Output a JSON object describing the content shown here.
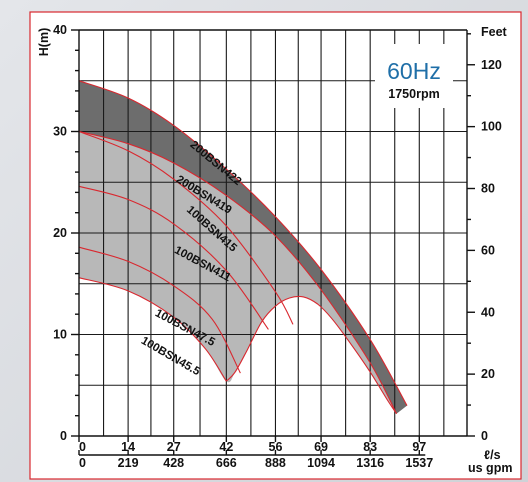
{
  "chart_data": {
    "type": "line",
    "title": "60Hz",
    "subtitle": "1750rpm",
    "ylabel": "H(m)",
    "ylabel_right": "Feet",
    "xlabel_top_unit": "ℓ/s",
    "xlabel_bottom_unit": "us gpm",
    "xlim": [
      0,
      110.6
    ],
    "ylim": [
      0,
      40
    ],
    "x_ticks": [
      0,
      14,
      27,
      42,
      56,
      69,
      83,
      97
    ],
    "x_ticks_gpm": [
      "0",
      "219",
      "428",
      "666",
      "888",
      "1094",
      "1316",
      "1537"
    ],
    "y_ticks": [
      0,
      10,
      20,
      30,
      40
    ],
    "y_ticks_feet": [
      "0",
      "20",
      "40",
      "60",
      "80",
      "100",
      "120"
    ],
    "grid": true,
    "series": [
      {
        "name": "200BSN422",
        "points": [
          [
            0,
            35
          ],
          [
            14,
            33.3
          ],
          [
            27,
            30.6
          ],
          [
            42,
            26.3
          ],
          [
            56,
            21.6
          ],
          [
            69,
            16.4
          ],
          [
            83,
            9.5
          ],
          [
            93.5,
            3.0
          ]
        ]
      },
      {
        "name": "200BSN419",
        "points": [
          [
            0,
            30
          ],
          [
            14,
            28.8
          ],
          [
            27,
            26.9
          ],
          [
            42,
            23.7
          ],
          [
            56,
            19.7
          ],
          [
            69,
            14.4
          ],
          [
            83,
            7.2
          ],
          [
            90.5,
            2.2
          ]
        ]
      },
      {
        "name": "100BSN415",
        "points": [
          [
            0,
            30
          ],
          [
            14,
            28.1
          ],
          [
            27,
            25.3
          ],
          [
            42,
            20.7
          ],
          [
            56,
            14.2
          ],
          [
            61,
            11.0
          ]
        ]
      },
      {
        "name": "100BSN411",
        "points": [
          [
            0,
            24.6
          ],
          [
            14,
            23.3
          ],
          [
            27,
            20.9
          ],
          [
            42,
            16.3
          ],
          [
            54,
            10.5
          ]
        ]
      },
      {
        "name": "100BSN47.5",
        "points": [
          [
            0,
            18.6
          ],
          [
            14,
            17.2
          ],
          [
            27,
            14.8
          ],
          [
            38,
            11.5
          ],
          [
            46,
            6.2
          ]
        ]
      },
      {
        "name": "100BSN45.5",
        "points": [
          [
            0,
            15.6
          ],
          [
            14,
            14.3
          ],
          [
            27,
            11.7
          ],
          [
            36,
            8.6
          ],
          [
            42,
            5.4
          ]
        ]
      }
    ],
    "shaded_bands": [
      {
        "upper": "200BSN422",
        "lower": "200BSN419",
        "color": "#6d6d6d"
      },
      {
        "upper": "200BSN419",
        "lower": "100BSN45.5",
        "color": "#b8b8b8"
      }
    ],
    "efficiency_boundary": [
      [
        0,
        15.6
      ],
      [
        14,
        14.3
      ],
      [
        27,
        11.7
      ],
      [
        36,
        8.6
      ],
      [
        42,
        5.4
      ],
      [
        44.5,
        6.3
      ],
      [
        48,
        8.5
      ],
      [
        52,
        11.2
      ],
      [
        56,
        12.8
      ],
      [
        60,
        13.6
      ],
      [
        64,
        13.7
      ],
      [
        68,
        13.0
      ],
      [
        72,
        11.6
      ],
      [
        77,
        9.3
      ],
      [
        83,
        6.3
      ],
      [
        88,
        3.5
      ],
      [
        90.5,
        2.2
      ]
    ],
    "label_positions": [
      {
        "series": "200BSN422",
        "at": [
          31.5,
          28.6
        ]
      },
      {
        "series": "200BSN419",
        "at": [
          27.5,
          25.1
        ]
      },
      {
        "series": "100BSN415",
        "at": [
          30.5,
          22.2
        ]
      },
      {
        "series": "100BSN411",
        "at": [
          27.0,
          18.1
        ]
      },
      {
        "series": "100BSN47.5",
        "at": [
          21.5,
          11.9
        ]
      },
      {
        "series": "100BSN45.5",
        "at": [
          17.5,
          9.2
        ]
      }
    ]
  }
}
